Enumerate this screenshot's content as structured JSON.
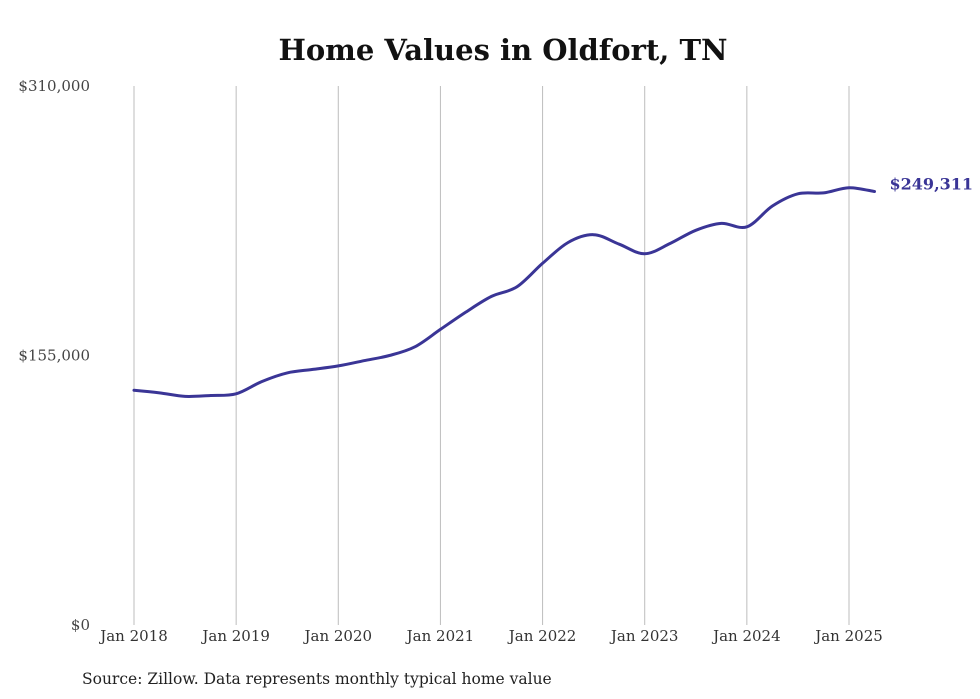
{
  "chart_data": {
    "type": "line",
    "title": "Home Values in Oldfort, TN",
    "source": "Source: Zillow. Data represents monthly typical home value",
    "ylim": [
      0,
      310000
    ],
    "yticks": [
      {
        "value": 0,
        "label": "$0"
      },
      {
        "value": 155000,
        "label": "$155,000"
      },
      {
        "value": 310000,
        "label": "$310,000"
      }
    ],
    "xticks": [
      {
        "value": 2018.0,
        "label": "Jan 2018"
      },
      {
        "value": 2019.0,
        "label": "Jan 2019"
      },
      {
        "value": 2020.0,
        "label": "Jan 2020"
      },
      {
        "value": 2021.0,
        "label": "Jan 2021"
      },
      {
        "value": 2022.0,
        "label": "Jan 2022"
      },
      {
        "value": 2023.0,
        "label": "Jan 2023"
      },
      {
        "value": 2024.0,
        "label": "Jan 2024"
      },
      {
        "value": 2025.0,
        "label": "Jan 2025"
      }
    ],
    "grid": "vertical",
    "line_color": "#3a3596",
    "series": [
      {
        "end_label": "$249,311",
        "points": [
          [
            2018.0,
            135000
          ],
          [
            2018.25,
            133500
          ],
          [
            2018.5,
            131500
          ],
          [
            2018.75,
            132000
          ],
          [
            2019.0,
            133000
          ],
          [
            2019.25,
            140000
          ],
          [
            2019.5,
            145000
          ],
          [
            2019.75,
            147000
          ],
          [
            2020.0,
            149000
          ],
          [
            2020.25,
            152000
          ],
          [
            2020.5,
            155000
          ],
          [
            2020.75,
            160000
          ],
          [
            2021.0,
            170000
          ],
          [
            2021.25,
            180000
          ],
          [
            2021.5,
            189000
          ],
          [
            2021.75,
            194500
          ],
          [
            2022.0,
            208000
          ],
          [
            2022.25,
            220000
          ],
          [
            2022.5,
            224500
          ],
          [
            2022.75,
            219000
          ],
          [
            2023.0,
            213500
          ],
          [
            2023.25,
            219500
          ],
          [
            2023.5,
            227000
          ],
          [
            2023.75,
            231000
          ],
          [
            2024.0,
            229000
          ],
          [
            2024.25,
            241000
          ],
          [
            2024.5,
            248000
          ],
          [
            2024.75,
            248500
          ],
          [
            2025.0,
            251500
          ],
          [
            2025.25,
            249311
          ]
        ]
      }
    ]
  }
}
